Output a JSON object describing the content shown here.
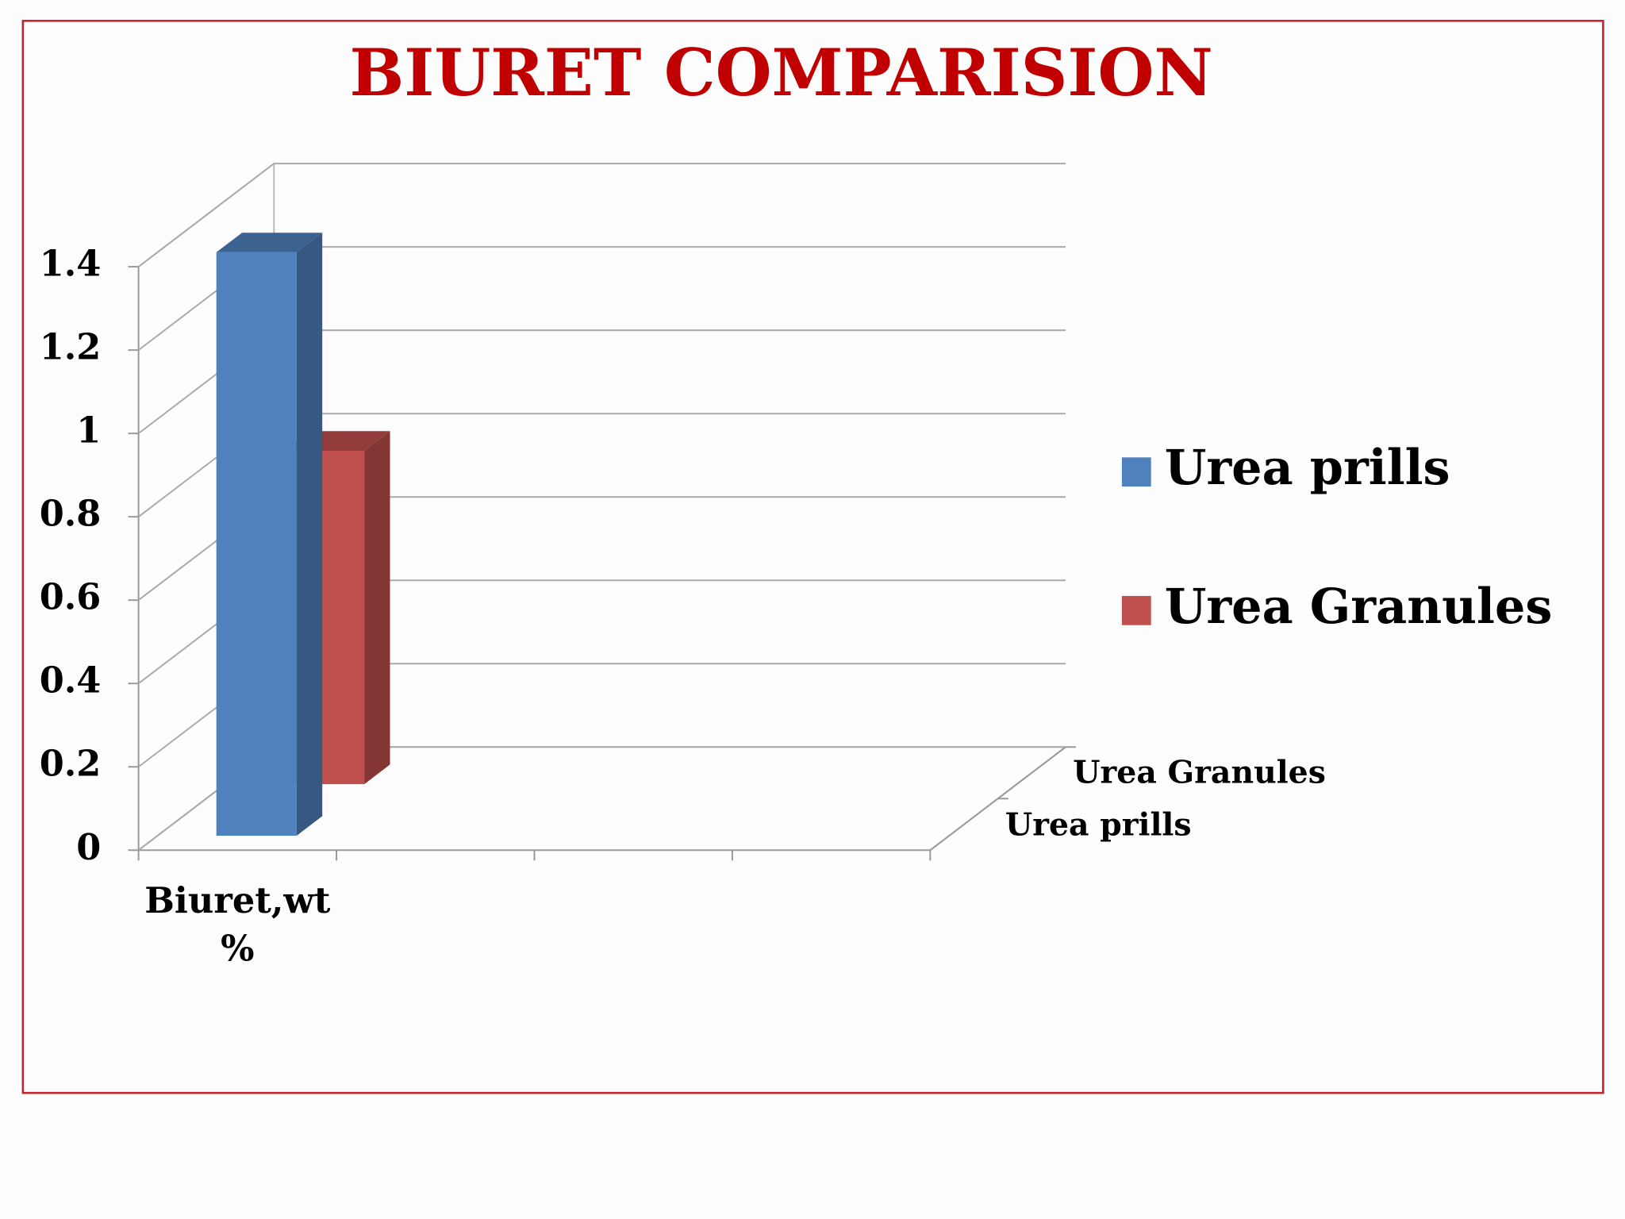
{
  "chart_data": {
    "type": "bar3d",
    "title": "BIURET COMPARISION",
    "categories": [
      "Biuret,wt %",
      null,
      null,
      null
    ],
    "series": [
      {
        "name": "Urea prills",
        "color": "#4f81bd",
        "values": [
          1.4,
          null,
          null,
          null
        ]
      },
      {
        "name": "Urea Granules",
        "color": "#c0504d",
        "values": [
          0.8,
          null,
          null,
          null
        ]
      }
    ],
    "ylim": [
      0,
      1.4
    ],
    "yticks": [
      0,
      0.2,
      0.4,
      0.6,
      0.8,
      1,
      1.2,
      1.4
    ],
    "grid": true,
    "legend": "right"
  }
}
